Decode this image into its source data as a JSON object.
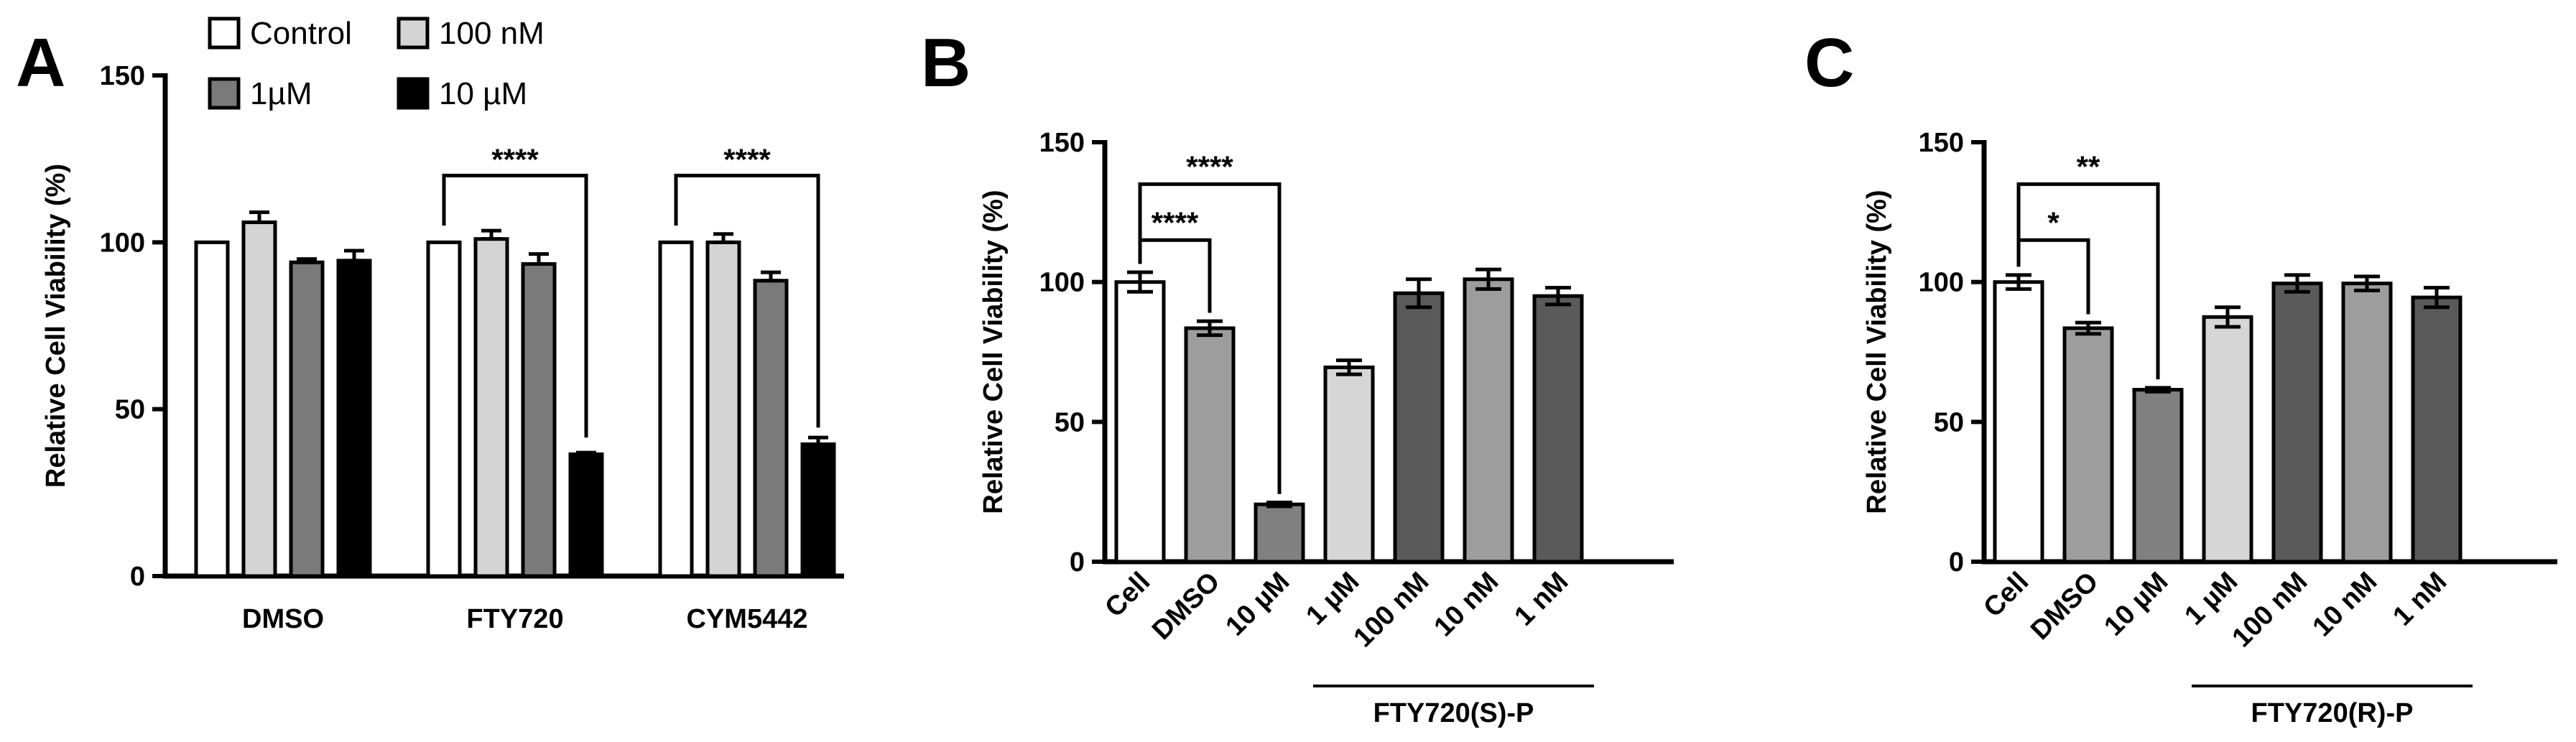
{
  "chart_data": [
    {
      "panel": "A",
      "type": "bar",
      "ylabel": "Relative Cell Viability (%)",
      "ylim": [
        0,
        150
      ],
      "yticks": [
        0,
        50,
        100,
        150
      ],
      "categories": [
        "DMSO",
        "FTY720",
        "CYM5442"
      ],
      "series": [
        {
          "name": "Control",
          "color": "#ffffff",
          "values": [
            100,
            100,
            100
          ],
          "errors": [
            0,
            0,
            0
          ]
        },
        {
          "name": "100 nM",
          "color": "#d4d4d4",
          "values": [
            106,
            101,
            100
          ],
          "errors": [
            3,
            2.5,
            2.5
          ]
        },
        {
          "name": "1µM",
          "color": "#7a7a7a",
          "values": [
            94,
            93.5,
            88.5
          ],
          "errors": [
            1,
            3,
            2.5
          ]
        },
        {
          "name": "10 µM",
          "color": "#000000",
          "values": [
            94.5,
            36.5,
            39.5
          ],
          "errors": [
            3,
            0.5,
            2
          ]
        }
      ],
      "significance": [
        {
          "group": 1,
          "from_series": 0,
          "to_series": 3,
          "label": "****"
        },
        {
          "group": 2,
          "from_series": 0,
          "to_series": 3,
          "label": "****"
        }
      ]
    },
    {
      "panel": "B",
      "type": "bar",
      "ylabel": "Relative Cell Viability (%)",
      "ylim": [
        0,
        150
      ],
      "yticks": [
        0,
        50,
        100,
        150
      ],
      "categories": [
        "Cell",
        "DMSO",
        "10 µM",
        "1 µM",
        "100 nM",
        "10 nM",
        "1 nM"
      ],
      "values": [
        100,
        83.5,
        20.5,
        69.5,
        96,
        101,
        95
      ],
      "errors": [
        3.5,
        2.5,
        0.7,
        2.5,
        5,
        3.5,
        3
      ],
      "colors": [
        "#ffffff",
        "#9d9d9d",
        "#808080",
        "#d6d6d6",
        "#5a5a5a",
        "#9d9d9d",
        "#5a5a5a"
      ],
      "group_label": {
        "text": "FTY720(S)-P",
        "from": 3,
        "to": 6
      },
      "significance": [
        {
          "from": 0,
          "to": 1,
          "label": "****",
          "level": 0
        },
        {
          "from": 0,
          "to": 2,
          "label": "****",
          "level": 1
        }
      ]
    },
    {
      "panel": "C",
      "type": "bar",
      "ylabel": "Relative Cell Viability (%)",
      "ylim": [
        0,
        150
      ],
      "yticks": [
        0,
        50,
        100,
        150
      ],
      "categories": [
        "Cell",
        "DMSO",
        "10 µM",
        "1 µM",
        "100 nM",
        "10 nM",
        "1 nM"
      ],
      "values": [
        100,
        83.5,
        61.5,
        87.5,
        99.5,
        99.5,
        94.5
      ],
      "errors": [
        2.5,
        2,
        0.7,
        3.5,
        3,
        2.5,
        3.5
      ],
      "colors": [
        "#ffffff",
        "#9d9d9d",
        "#808080",
        "#d6d6d6",
        "#5a5a5a",
        "#9d9d9d",
        "#5a5a5a"
      ],
      "group_label": {
        "text": "FTY720(R)-P",
        "from": 3,
        "to": 6
      },
      "significance": [
        {
          "from": 0,
          "to": 1,
          "label": "*",
          "level": 0
        },
        {
          "from": 0,
          "to": 2,
          "label": "**",
          "level": 1
        }
      ]
    }
  ]
}
